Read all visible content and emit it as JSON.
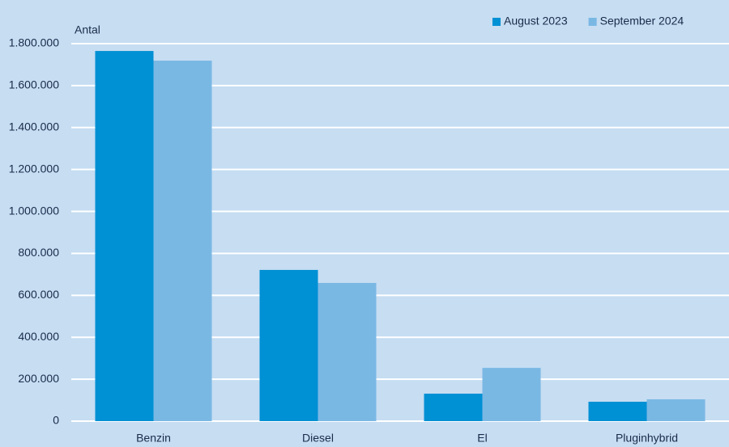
{
  "chart_data": {
    "type": "bar",
    "y_label": "Antal",
    "categories": [
      "Benzin",
      "Diesel",
      "El",
      "Pluginhybrid"
    ],
    "series": [
      {
        "name": "August 2023",
        "color": "#0090d4",
        "values": [
          1765000,
          721000,
          131000,
          92500
        ]
      },
      {
        "name": "September 2024",
        "color": "#7ab8e4",
        "values": [
          1719000,
          659000,
          254000,
          104000
        ]
      }
    ],
    "ylim": [
      0,
      1800000
    ],
    "yticks": [
      0,
      {
        "value": 200000,
        "label": "200.000"
      },
      {
        "value": 400000,
        "label": "400.000"
      },
      {
        "value": 600000,
        "label": "600.000"
      },
      {
        "value": 800000,
        "label": "800.000"
      },
      {
        "value": 1000000,
        "label": "1.000.000"
      },
      {
        "value": 1200000,
        "label": "1.200.000"
      },
      {
        "value": 1400000,
        "label": "1.400.000"
      },
      {
        "value": 1600000,
        "label": "1.600.000"
      },
      {
        "value": 1800000,
        "label": "1.800.000"
      }
    ],
    "grid": true,
    "legend": "top-right"
  }
}
